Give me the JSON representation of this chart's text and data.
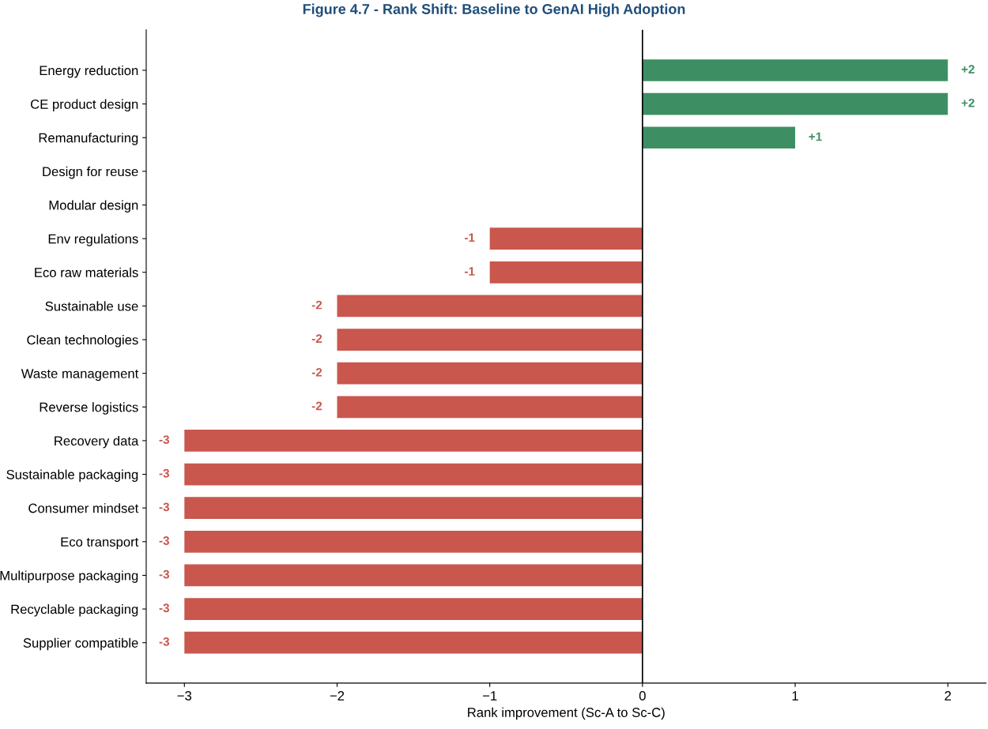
{
  "chart_data": {
    "type": "bar",
    "orientation": "horizontal",
    "title": "Figure 4.7 - Rank Shift: Baseline to GenAI High Adoption",
    "xlabel": "Rank improvement (Sc-A to Sc-C)",
    "categories": [
      "Energy reduction",
      "CE product design",
      "Remanufacturing",
      "Design for reuse",
      "Modular design",
      "Env regulations",
      "Eco raw materials",
      "Sustainable use",
      "Clean technologies",
      "Waste management",
      "Reverse logistics",
      "Recovery data",
      "Sustainable packaging",
      "Consumer mindset",
      "Eco transport",
      "Multipurpose packaging",
      "Recyclable packaging",
      "Supplier compatible"
    ],
    "values": [
      2,
      2,
      1,
      0,
      0,
      -1,
      -1,
      -2,
      -2,
      -2,
      -2,
      -3,
      -3,
      -3,
      -3,
      -3,
      -3,
      -3
    ],
    "value_labels": [
      "+2",
      "+2",
      "+1",
      null,
      null,
      "-1",
      "-1",
      "-2",
      "-2",
      "-2",
      "-2",
      "-3",
      "-3",
      "-3",
      "-3",
      "-3",
      "-3",
      "-3"
    ],
    "colors": [
      "#3d8f63",
      "#3d8f63",
      "#3d8f63",
      "#c9574d",
      "#c9574d",
      "#c9574d",
      "#c9574d",
      "#c9574d",
      "#c9574d",
      "#c9574d",
      "#c9574d",
      "#c9574d",
      "#c9574d",
      "#c9574d",
      "#c9574d",
      "#c9574d",
      "#c9574d",
      "#c9574d"
    ],
    "xlim": [
      -3.25,
      2.25
    ],
    "xticks": [
      {
        "value": -3,
        "label": "−3"
      },
      {
        "value": -2,
        "label": "−2"
      },
      {
        "value": -1,
        "label": "−1"
      },
      0,
      1,
      2
    ],
    "ref_lines": [
      {
        "axis": "x",
        "value": 0,
        "label": null,
        "color": "#000000"
      }
    ],
    "grid": false,
    "legend": false
  }
}
